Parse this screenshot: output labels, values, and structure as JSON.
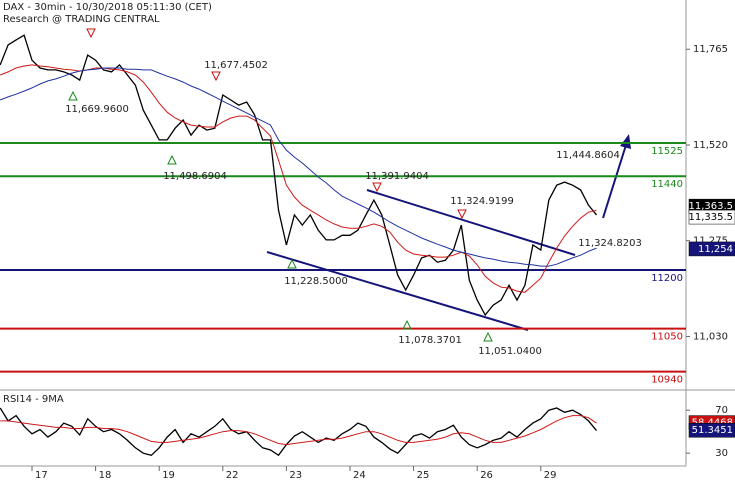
{
  "chart_data": [
    {
      "type": "line",
      "title": "DAX - 30min - 10/30/2018 05:11:30 (CET)",
      "subtitle": "Research @ TRADING CENTRAL",
      "ylim": [
        10893,
        11891
      ],
      "yticks": [
        {
          "value": 11030,
          "label": "11,030"
        },
        {
          "value": 11275,
          "label": "11,275"
        },
        {
          "value": 11520,
          "label": "11,520"
        },
        {
          "value": 11765,
          "label": "11,765"
        }
      ],
      "series": [
        {
          "color": "#000000",
          "values": [
            11725,
            11776,
            11789,
            11801,
            11737,
            11717,
            11712,
            11712,
            11707,
            11699,
            11686,
            11750,
            11737,
            11712,
            11707,
            11725,
            11699,
            11673,
            11609,
            11571,
            11533,
            11533,
            11563,
            11584,
            11545,
            11571,
            11558,
            11563,
            11648,
            11635,
            11622,
            11630,
            11597,
            11533,
            11533,
            11353,
            11264,
            11341,
            11315,
            11341,
            11302,
            11277,
            11277,
            11289,
            11289,
            11302,
            11341,
            11379,
            11341,
            11264,
            11187,
            11149,
            11187,
            11231,
            11238,
            11220,
            11225,
            11251,
            11315,
            11174,
            11123,
            11085,
            11110,
            11123,
            11161,
            11123,
            11161,
            11264,
            11251,
            11379,
            11417,
            11425,
            11417,
            11405,
            11366,
            11341
          ]
        },
        {
          "color": "#d01818",
          "values": [
            11699,
            11707,
            11717,
            11722,
            11725,
            11722,
            11720,
            11717,
            11714,
            11712,
            11709,
            11712,
            11717,
            11717,
            11714,
            11712,
            11707,
            11699,
            11681,
            11655,
            11627,
            11604,
            11589,
            11579,
            11571,
            11568,
            11566,
            11566,
            11579,
            11589,
            11594,
            11594,
            11584,
            11563,
            11543,
            11481,
            11417,
            11387,
            11366,
            11353,
            11341,
            11328,
            11318,
            11310,
            11307,
            11307,
            11312,
            11318,
            11312,
            11297,
            11271,
            11251,
            11241,
            11238,
            11236,
            11233,
            11233,
            11238,
            11246,
            11236,
            11213,
            11184,
            11167,
            11156,
            11154,
            11146,
            11143,
            11161,
            11179,
            11220,
            11256,
            11287,
            11312,
            11333,
            11348,
            11353
          ]
        },
        {
          "color": "#2233a0",
          "values": [
            11635,
            11643,
            11650,
            11658,
            11666,
            11676,
            11684,
            11689,
            11696,
            11704,
            11709,
            11712,
            11714,
            11717,
            11717,
            11717,
            11714,
            11714,
            11712,
            11712,
            11704,
            11696,
            11689,
            11681,
            11671,
            11663,
            11653,
            11643,
            11632,
            11622,
            11612,
            11602,
            11591,
            11581,
            11571,
            11533,
            11507,
            11489,
            11474,
            11456,
            11438,
            11423,
            11405,
            11389,
            11379,
            11369,
            11359,
            11348,
            11336,
            11323,
            11312,
            11302,
            11292,
            11282,
            11274,
            11266,
            11259,
            11251,
            11246,
            11241,
            11236,
            11231,
            11228,
            11223,
            11220,
            11218,
            11215,
            11213,
            11210,
            11210,
            11215,
            11223,
            11231,
            11238,
            11248,
            11256
          ]
        }
      ],
      "levels": [
        {
          "value": 11525,
          "color": "#1a8a1a"
        },
        {
          "value": 11440,
          "color": "#1a8a1a"
        },
        {
          "value": 11200,
          "color": "#14147a"
        },
        {
          "value": 11050,
          "color": "#c81010"
        },
        {
          "value": 10940,
          "color": "#c81010"
        }
      ],
      "price_tags": [
        {
          "value": 11363.5,
          "label": "11,363.5",
          "color": "#000000"
        },
        {
          "value": 11335.5,
          "label": "11,335.5",
          "color": "#ffffff"
        },
        {
          "value": 11254,
          "label": "11,254",
          "color": "#14147a"
        }
      ],
      "annotations": [
        {
          "value": 11677.4502,
          "label": "11,677.4502"
        },
        {
          "value": 11669.96,
          "label": "11,669.9600"
        },
        {
          "value": 11498.6904,
          "label": "11,498.6904"
        },
        {
          "value": 11391.9404,
          "label": "11,391.9404"
        },
        {
          "value": 11324.9199,
          "label": "11,324.9199"
        },
        {
          "value": 11444.8604,
          "label": "11,444.8604"
        },
        {
          "value": 11324.8203,
          "label": "11,324.8203"
        },
        {
          "value": 11228.5,
          "label": "11,228.5000"
        },
        {
          "value": 11078.3701,
          "label": "11,078.3701"
        },
        {
          "value": 11051.04,
          "label": "11,051.0400"
        }
      ]
    },
    {
      "type": "line",
      "title": "RSI14 - 9MA",
      "categories": [
        null,
        null,
        null,
        null,
        "17",
        null,
        null,
        null,
        null,
        null,
        null,
        null,
        "18",
        null,
        null,
        null,
        null,
        null,
        null,
        null,
        "19",
        null,
        null,
        null,
        null,
        null,
        null,
        null,
        "22",
        null,
        null,
        null,
        null,
        null,
        null,
        null,
        "23",
        null,
        null,
        null,
        null,
        null,
        null,
        null,
        "24",
        null,
        null,
        null,
        null,
        null,
        null,
        null,
        "25",
        null,
        null,
        null,
        null,
        null,
        null,
        null,
        "26",
        null,
        null,
        null,
        null,
        null,
        null,
        null,
        "29",
        null,
        null,
        null,
        null,
        null,
        null,
        null
      ],
      "ylim": [
        19,
        86
      ],
      "yticks": [
        30,
        70
      ],
      "series": [
        {
          "color": "#000000",
          "values": [
            72,
            60,
            65,
            55,
            48,
            52,
            45,
            50,
            58,
            55,
            47,
            62,
            55,
            50,
            52,
            48,
            42,
            35,
            30,
            28,
            35,
            45,
            52,
            40,
            48,
            45,
            50,
            55,
            62,
            52,
            48,
            50,
            42,
            35,
            33,
            28,
            38,
            46,
            50,
            45,
            40,
            44,
            42,
            48,
            52,
            58,
            55,
            45,
            40,
            34,
            30,
            38,
            46,
            48,
            44,
            50,
            52,
            56,
            45,
            38,
            35,
            38,
            42,
            44,
            50,
            45,
            52,
            58,
            62,
            70,
            72,
            68,
            70,
            66,
            60,
            51
          ]
        },
        {
          "color": "#d01818",
          "values": [
            60,
            60,
            59,
            58,
            57,
            56,
            55,
            54,
            54,
            53,
            53,
            54,
            54,
            53,
            53,
            52,
            50,
            47,
            44,
            41,
            40,
            40,
            41,
            42,
            43,
            44,
            46,
            48,
            50,
            51,
            51,
            50,
            48,
            45,
            42,
            39,
            38,
            39,
            40,
            41,
            42,
            43,
            43,
            44,
            46,
            48,
            50,
            50,
            48,
            45,
            42,
            40,
            40,
            41,
            42,
            43,
            45,
            48,
            49,
            48,
            45,
            42,
            40,
            40,
            42,
            44,
            46,
            49,
            52,
            56,
            60,
            63,
            65,
            65,
            63,
            58
          ]
        }
      ],
      "price_tags": [
        {
          "value": 58.4468,
          "label": "58.4468",
          "color": "#c81010"
        },
        {
          "value": 51.3451,
          "label": "51.3451",
          "color": "#14147a"
        }
      ]
    }
  ]
}
